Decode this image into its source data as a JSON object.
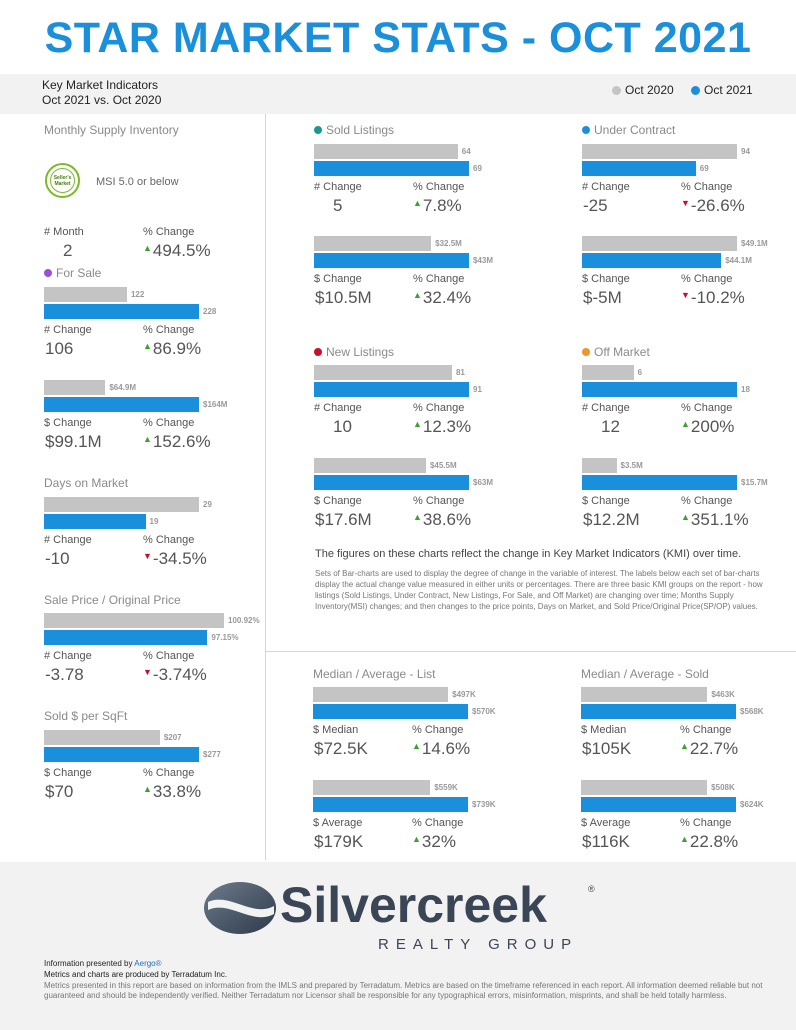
{
  "header": {
    "title": "STAR MARKET STATS - OCT 2021",
    "kmi_line1": "Key Market Indicators",
    "kmi_line2": "Oct 2021 vs. Oct 2020"
  },
  "legend": {
    "prev_label": "Oct 2020",
    "curr_label": "Oct 2021",
    "prev_color": "#c4c4c4",
    "curr_color": "#1a8fdc"
  },
  "msi": {
    "title": "Monthly Supply Inventory",
    "badge_line1": "Seller's",
    "badge_line2": "Market",
    "badge_text": "MSI 5.0 or below",
    "left_label": "# Month",
    "left_value": "2",
    "right_label": "% Change",
    "right_value": "494.5%",
    "right_dir": "up"
  },
  "sections": {
    "for_sale": {
      "title": "For Sale",
      "dot_color": "#9b4fd6",
      "c1": {
        "prev": 122,
        "curr": 228,
        "prev_label": "122",
        "curr_label": "228",
        "left_label": "# Change",
        "left_value": "106",
        "right_label": "% Change",
        "right_value": "86.9%",
        "right_dir": "up"
      },
      "c2": {
        "prev": 64.9,
        "curr": 164,
        "prev_label": "$64.9M",
        "curr_label": "$164M",
        "left_label": "$ Change",
        "left_value": "$99.1M",
        "right_label": "% Change",
        "right_value": "152.6%",
        "right_dir": "up"
      }
    },
    "days_on_market": {
      "title": "Days on Market",
      "c1": {
        "prev": 29,
        "curr": 19,
        "prev_label": "29",
        "curr_label": "19",
        "left_label": "# Change",
        "left_value": "-10",
        "right_label": "% Change",
        "right_value": "-34.5%",
        "right_dir": "down"
      }
    },
    "sp_op": {
      "title": "Sale Price / Original Price",
      "c1": {
        "prev": 100.92,
        "curr": 97.15,
        "prev_label": "100.92%",
        "curr_label": "97.15%",
        "left_label": "# Change",
        "left_value": "-3.78",
        "right_label": "% Change",
        "right_value": "-3.74%",
        "right_dir": "down"
      }
    },
    "sqft": {
      "title": "Sold $ per SqFt",
      "c1": {
        "prev": 207,
        "curr": 277,
        "prev_label": "$207",
        "curr_label": "$277",
        "left_label": "$ Change",
        "left_value": "$70",
        "right_label": "% Change",
        "right_value": "33.8%",
        "right_dir": "up"
      }
    },
    "sold": {
      "title": "Sold Listings",
      "dot_color": "#17998f",
      "c1": {
        "prev": 64,
        "curr": 69,
        "prev_label": "64",
        "curr_label": "69",
        "left_label": "# Change",
        "left_value": "5",
        "right_label": "% Change",
        "right_value": "7.8%",
        "right_dir": "up"
      },
      "c2": {
        "prev": 32.5,
        "curr": 43,
        "prev_label": "$32.5M",
        "curr_label": "$43M",
        "left_label": "$ Change",
        "left_value": "$10.5M",
        "right_label": "% Change",
        "right_value": "32.4%",
        "right_dir": "up"
      }
    },
    "under_contract": {
      "title": "Under Contract",
      "dot_color": "#1a8fdc",
      "c1": {
        "prev": 94,
        "curr": 69,
        "prev_label": "94",
        "curr_label": "69",
        "left_label": "# Change",
        "left_value": "-25",
        "right_label": "% Change",
        "right_value": "-26.6%",
        "right_dir": "down"
      },
      "c2": {
        "prev": 49.1,
        "curr": 44.1,
        "prev_label": "$49.1M",
        "curr_label": "$44.1M",
        "left_label": "$ Change",
        "left_value": "$-5M",
        "right_label": "% Change",
        "right_value": "-10.2%",
        "right_dir": "down"
      }
    },
    "new_listings": {
      "title": "New Listings",
      "dot_color": "#c8102e",
      "c1": {
        "prev": 81,
        "curr": 91,
        "prev_label": "81",
        "curr_label": "91",
        "left_label": "# Change",
        "left_value": "10",
        "right_label": "% Change",
        "right_value": "12.3%",
        "right_dir": "up"
      },
      "c2": {
        "prev": 45.5,
        "curr": 63,
        "prev_label": "$45.5M",
        "curr_label": "$63M",
        "left_label": "$ Change",
        "left_value": "$17.6M",
        "right_label": "% Change",
        "right_value": "38.6%",
        "right_dir": "up"
      }
    },
    "off_market": {
      "title": "Off Market",
      "dot_color": "#f0952a",
      "c1": {
        "prev": 6,
        "curr": 18,
        "prev_label": "6",
        "curr_label": "18",
        "left_label": "# Change",
        "left_value": "12",
        "right_label": "% Change",
        "right_value": "200%",
        "right_dir": "up"
      },
      "c2": {
        "prev": 3.5,
        "curr": 15.7,
        "prev_label": "$3.5M",
        "curr_label": "$15.7M",
        "left_label": "$ Change",
        "left_value": "$12.2M",
        "right_label": "% Change",
        "right_value": "351.1%",
        "right_dir": "up"
      }
    },
    "list_price": {
      "title": "Median / Average - List",
      "c1": {
        "prev": 497,
        "curr": 570,
        "prev_label": "$497K",
        "curr_label": "$570K",
        "left_label": "$ Median",
        "left_value": "$72.5K",
        "right_label": "% Change",
        "right_value": "14.6%",
        "right_dir": "up"
      },
      "c2": {
        "prev": 559,
        "curr": 739,
        "prev_label": "$559K",
        "curr_label": "$739K",
        "left_label": "$ Average",
        "left_value": "$179K",
        "right_label": "% Change",
        "right_value": "32%",
        "right_dir": "up"
      }
    },
    "sold_price": {
      "title": "Median / Average - Sold",
      "c1": {
        "prev": 463,
        "curr": 568,
        "prev_label": "$463K",
        "curr_label": "$568K",
        "left_label": "$ Median",
        "left_value": "$105K",
        "right_label": "% Change",
        "right_value": "22.7%",
        "right_dir": "up"
      },
      "c2": {
        "prev": 508,
        "curr": 624,
        "prev_label": "$508K",
        "curr_label": "$624K",
        "left_label": "$ Average",
        "left_value": "$116K",
        "right_label": "% Change",
        "right_value": "22.8%",
        "right_dir": "up"
      }
    }
  },
  "explanation": {
    "title": "The figures on these charts reflect the change in Key Market Indicators (KMI) over time.",
    "body": "Sets of Bar-charts are used to display the degree of change in the variable of interest. The labels below each set of bar-charts display the actual change value measured in either units or percentages. There are three basic KMI groups on the report - how listings (Sold Listings, Under Contract, New Listings, For Sale, and Off Market) are changing over time; Months Supply Inventory(MSI) changes; and then changes to the price points, Days on Market, and Sold Price/Original Price(SP/OP) values."
  },
  "footer": {
    "logo_name": "Silvercreek",
    "logo_sub": "REALTY GROUP",
    "logo_mark": "®",
    "presented_by": "Information presented by",
    "presented_link": "Aergo®",
    "produced_by": "Metrics and charts are produced by Terradatum Inc.",
    "disclaimer": "Metrics presented in this report are based on information from the IMLS and prepared by Terradatum. Metrics are based on the timeframe referenced in each report. All information deemed reliable but not guaranteed and should be independently verified. Neither Terradatum nor Licensor shall be responsible for any typographical errors, misinformation, misprints, and shall be held totally harmless."
  }
}
